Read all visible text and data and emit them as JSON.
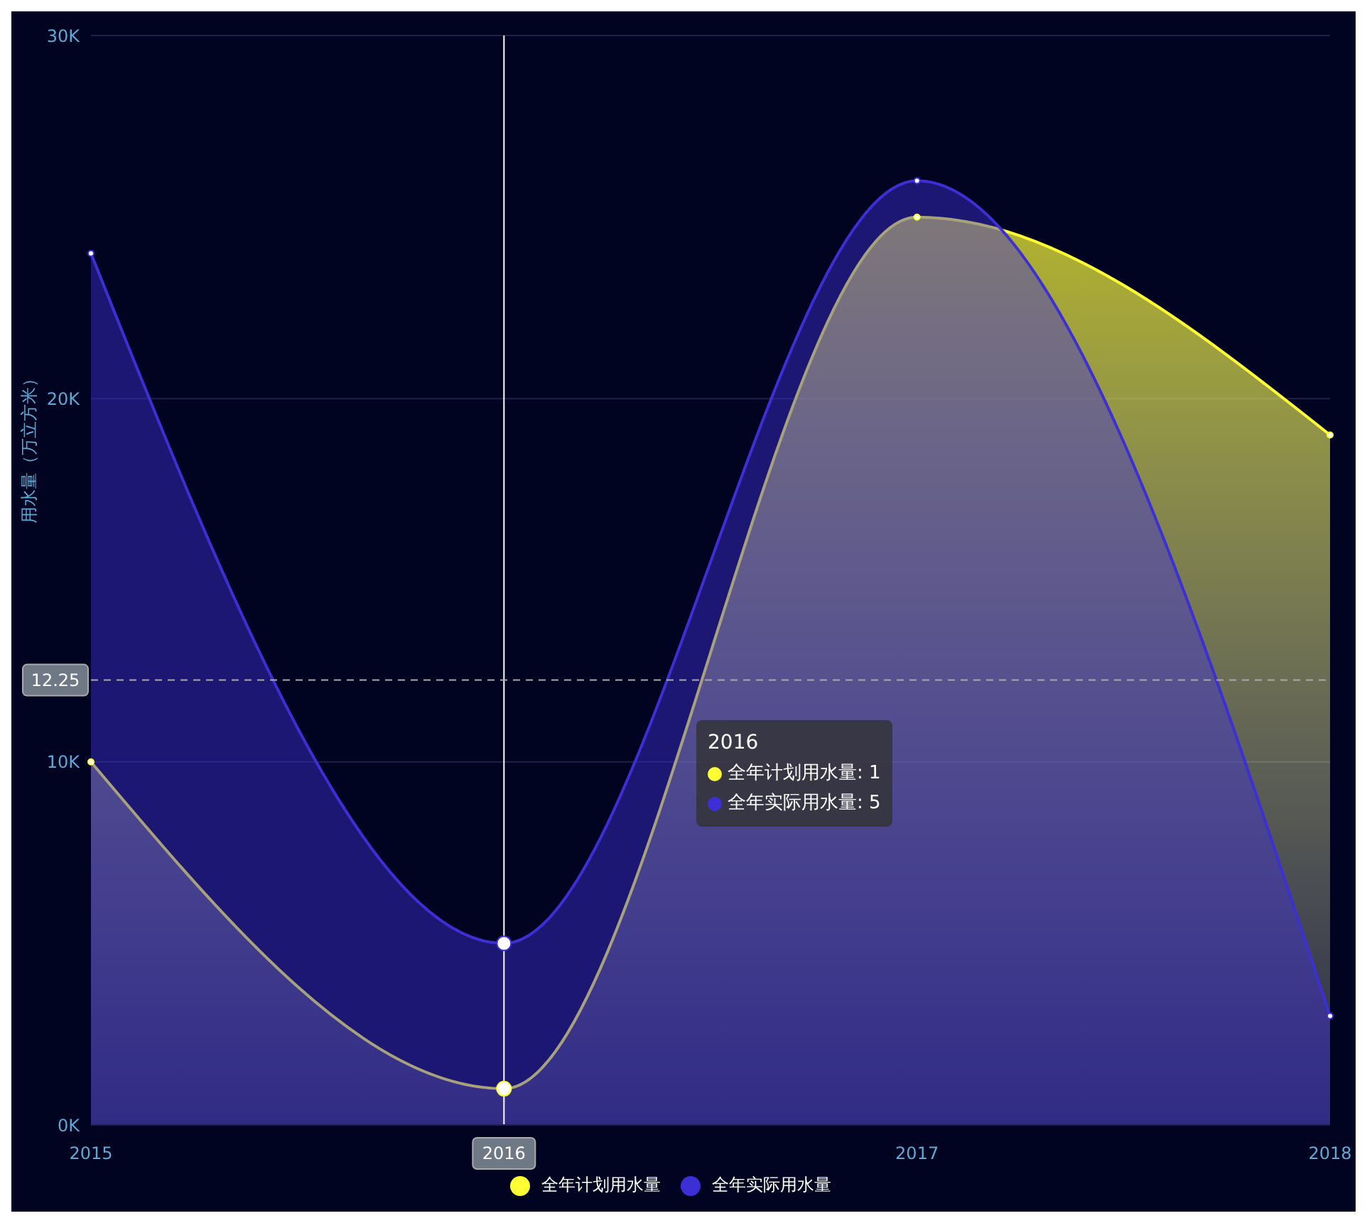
{
  "chart_data": {
    "type": "area",
    "categories": [
      "2015",
      "2016",
      "2017",
      "2018"
    ],
    "ylabel": "用水量（万立方米）",
    "series": [
      {
        "name": "全年计划用水量",
        "color": "#ffff33",
        "values": [
          10,
          1,
          25,
          19
        ]
      },
      {
        "name": "全年实际用水量",
        "color": "#3d2fd6",
        "values": [
          24,
          5,
          26,
          3
        ]
      }
    ],
    "ylim": [
      0,
      30
    ],
    "yticks": [
      {
        "value": 0,
        "label": "0K"
      },
      {
        "value": 10,
        "label": "10K"
      },
      {
        "value": 20,
        "label": "20K"
      },
      {
        "value": 30,
        "label": "30K"
      }
    ],
    "grid": "y",
    "legend": "bottom",
    "marker": "circle",
    "ref_lines": [
      {
        "axis": "x",
        "value": "2016",
        "color": "#ffffff",
        "line_style": "solid"
      },
      {
        "axis": "y",
        "value": 12.25,
        "label": "12.25",
        "color": "#aaaaaa",
        "line_style": "dashed"
      }
    ],
    "annotations": [
      "2016",
      "全年计划用水量: 1",
      "全年实际用水量: 5"
    ]
  }
}
